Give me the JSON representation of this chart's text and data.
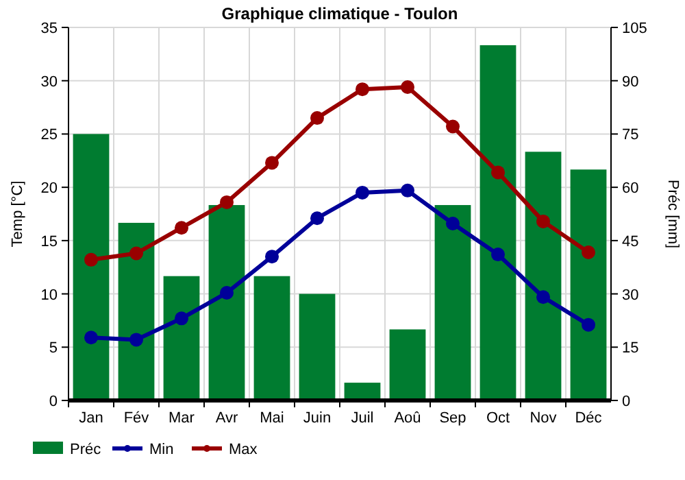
{
  "chart_data": {
    "type": "bar",
    "title": "Graphique climatique - Toulon",
    "ylabel": "Temp [°C]",
    "y2label": "Préc [mm]",
    "categories": [
      "Jan",
      "Fév",
      "Mar",
      "Avr",
      "Mai",
      "Juin",
      "Juil",
      "Aoû",
      "Sep",
      "Oct",
      "Nov",
      "Déc"
    ],
    "series": [
      {
        "name": "Préc",
        "axis": "y2",
        "color": "#007c30",
        "values": [
          75,
          50,
          35,
          55,
          35,
          30,
          5,
          20,
          55,
          100,
          70,
          65
        ]
      },
      {
        "name": "Min",
        "type": "line",
        "color": "#000099",
        "values": [
          5.9,
          5.7,
          7.7,
          10.1,
          13.5,
          17.1,
          19.5,
          19.7,
          16.6,
          13.7,
          9.7,
          7.1
        ]
      },
      {
        "name": "Max",
        "type": "line",
        "color": "#990000",
        "values": [
          13.2,
          13.8,
          16.2,
          18.6,
          22.3,
          26.5,
          29.2,
          29.4,
          25.7,
          21.4,
          16.8,
          13.9
        ]
      }
    ],
    "ylim": [
      0,
      35
    ],
    "yticks": [
      0,
      5,
      10,
      15,
      20,
      25,
      30,
      35
    ],
    "y2lim": [
      0,
      105
    ],
    "y2ticks": [
      0,
      15,
      30,
      45,
      60,
      75,
      90,
      105
    ],
    "grid": true,
    "legend": "bottom",
    "marker": "circle"
  }
}
